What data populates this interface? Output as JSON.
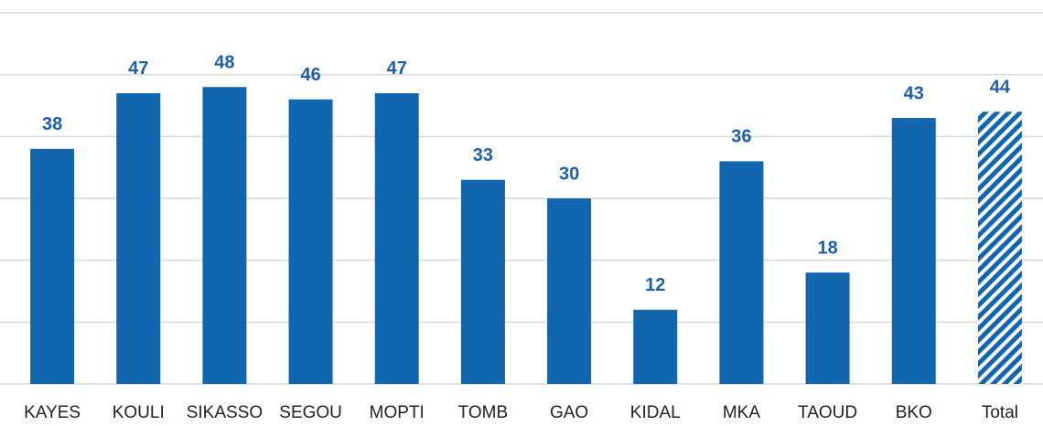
{
  "chart_data": {
    "type": "bar",
    "categories": [
      "KAYES",
      "KOULI",
      "SIKASSO",
      "SEGOU",
      "MOPTI",
      "TOMB",
      "GAO",
      "KIDAL",
      "MKA",
      "TAOUD",
      "BKO",
      "Total"
    ],
    "values": [
      38,
      47,
      48,
      46,
      47,
      33,
      30,
      12,
      36,
      18,
      43,
      44
    ],
    "color": "#1166ad",
    "patterns": [
      "solid",
      "solid",
      "solid",
      "solid",
      "solid",
      "solid",
      "solid",
      "solid",
      "solid",
      "solid",
      "solid",
      "hatch"
    ],
    "ylim": [
      0,
      60
    ],
    "yticks": [
      0,
      10,
      20,
      30,
      40,
      50,
      60
    ],
    "grid": true
  }
}
